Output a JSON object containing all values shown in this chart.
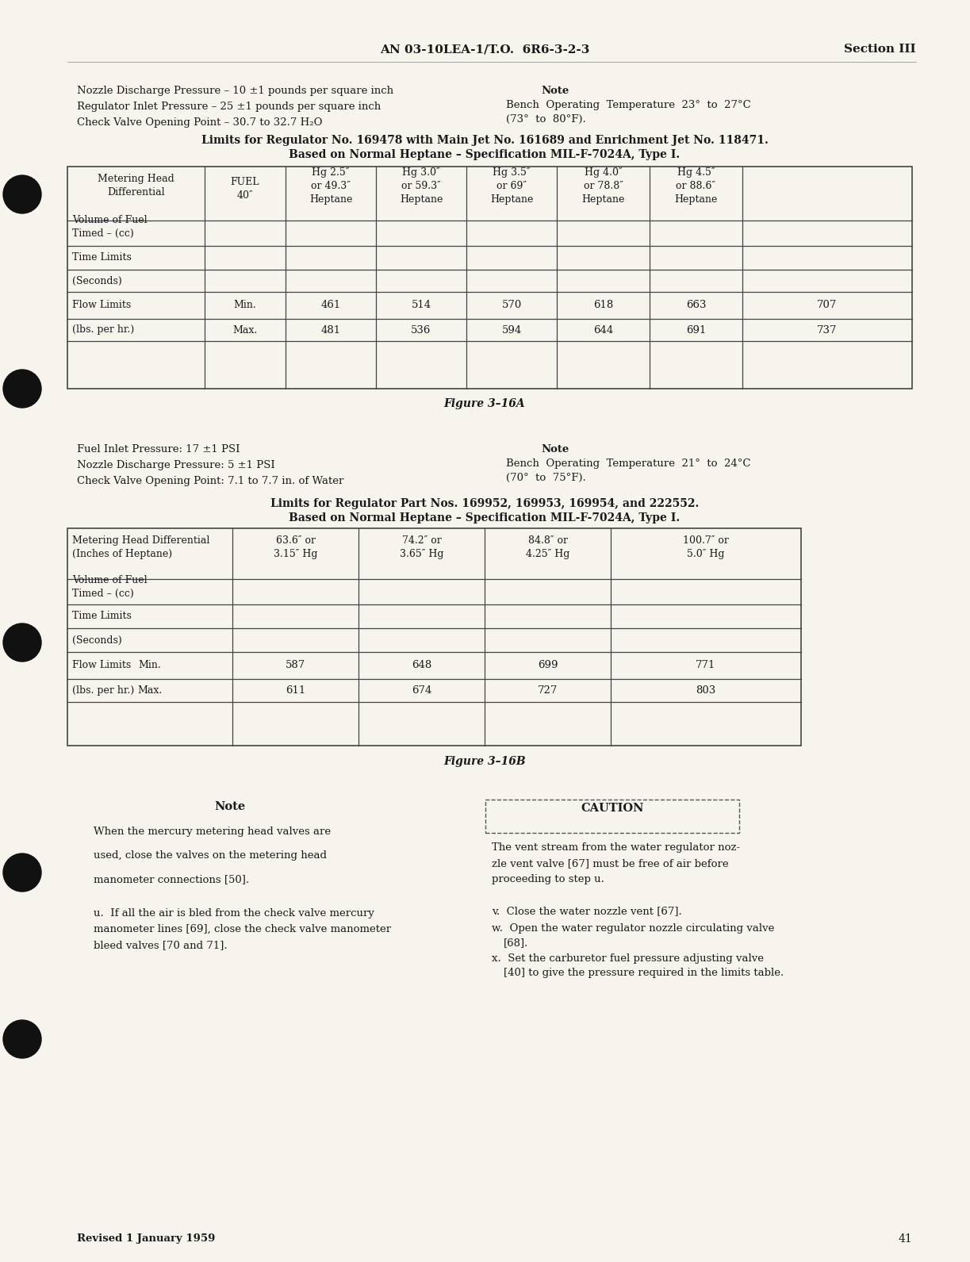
{
  "bg_color": "#f7f4ed",
  "text_color": "#1a1a1a",
  "header_center": "AN 03-10LEA-1/T.O.  6R6-3-2-3",
  "header_right": "Section III",
  "page_number": "41",
  "footer_left": "Revised 1 January 1959",
  "section1_left": [
    "Nozzle Discharge Pressure – 10 ±1 pounds per square inch",
    "Regulator Inlet Pressure – 25 ±1 pounds per square inch",
    "Check Valve Opening Point – 30.7 to 32.7 H₂O"
  ],
  "section1_note_title": "Note",
  "section1_note_body": [
    "Bench  Operating  Temperature  23°  to  27°C",
    "(73°  to  80°F)."
  ],
  "table1_title1": "Limits for Regulator No. 169478 with Main Jet No. 161689 and Enrichment Jet No. 118471.",
  "table1_title2": "Based on Normal Heptane – Specification MIL-F-7024A, Type I.",
  "table1_col_headers": [
    "FUEL\n40″",
    "Hg 2.5″\nor 49.3″\nHeptane",
    "Hg 3.0″\nor 59.3″\nHeptane",
    "Hg 3.5″\nor 69″\nHeptane",
    "Hg 4.0″\nor 78.8″\nHeptane",
    "Hg 4.5″\nor 88.6″\nHeptane"
  ],
  "table1_flow_min": [
    "461",
    "514",
    "570",
    "618",
    "663",
    "707"
  ],
  "table1_flow_max": [
    "481",
    "536",
    "594",
    "644",
    "691",
    "737"
  ],
  "table1_caption": "Figure 3–16A",
  "section2_left": [
    "Fuel Inlet Pressure: 17 ±1 PSI",
    "Nozzle Discharge Pressure: 5 ±1 PSI",
    "Check Valve Opening Point: 7.1 to 7.7 in. of Water"
  ],
  "section2_note_title": "Note",
  "section2_note_body": [
    "Bench  Operating  Temperature  21°  to  24°C",
    "(70°  to  75°F)."
  ],
  "table2_title1": "Limits for Regulator Part Nos. 169952, 169953, 169954, and 222552.",
  "table2_title2": "Based on Normal Heptane – Specification MIL-F-7024A, Type I.",
  "table2_col_headers": [
    "",
    "63.6″ or\n3.15″ Hg",
    "74.2″ or\n3.65″ Hg",
    "84.8″ or\n4.25″ Hg",
    "100.7″ or\n5.0″ Hg"
  ],
  "table2_flow_min": [
    "587",
    "648",
    "699",
    "771"
  ],
  "table2_flow_max": [
    "611",
    "674",
    "727",
    "803"
  ],
  "table2_caption": "Figure 3–16B",
  "note_title": "Note",
  "note_body_lines": [
    "When the mercury metering head valves are",
    "used, close the valves on the metering head",
    "manometer connections [50]."
  ],
  "note_u_line1": "u.  If all the air is bled from the check valve mercury",
  "note_u_line2": "manometer lines [69], close the check valve manometer",
  "note_u_line3": "bleed valves [70 and 71].",
  "caution_title": "CAUTION",
  "caution_lines": [
    "The vent stream from the water regulator noz-",
    "zle vent valve [67] must be free of air before",
    "proceeding to step u."
  ],
  "v_line": "v.  Close the water nozzle vent [67].",
  "w_line1": "w.  Open the water regulator nozzle circulating valve",
  "w_line2": "[68].",
  "x_line1": "x.  Set the carburetor fuel pressure adjusting valve",
  "x_line2": "[40] to give the pressure required in the limits table."
}
